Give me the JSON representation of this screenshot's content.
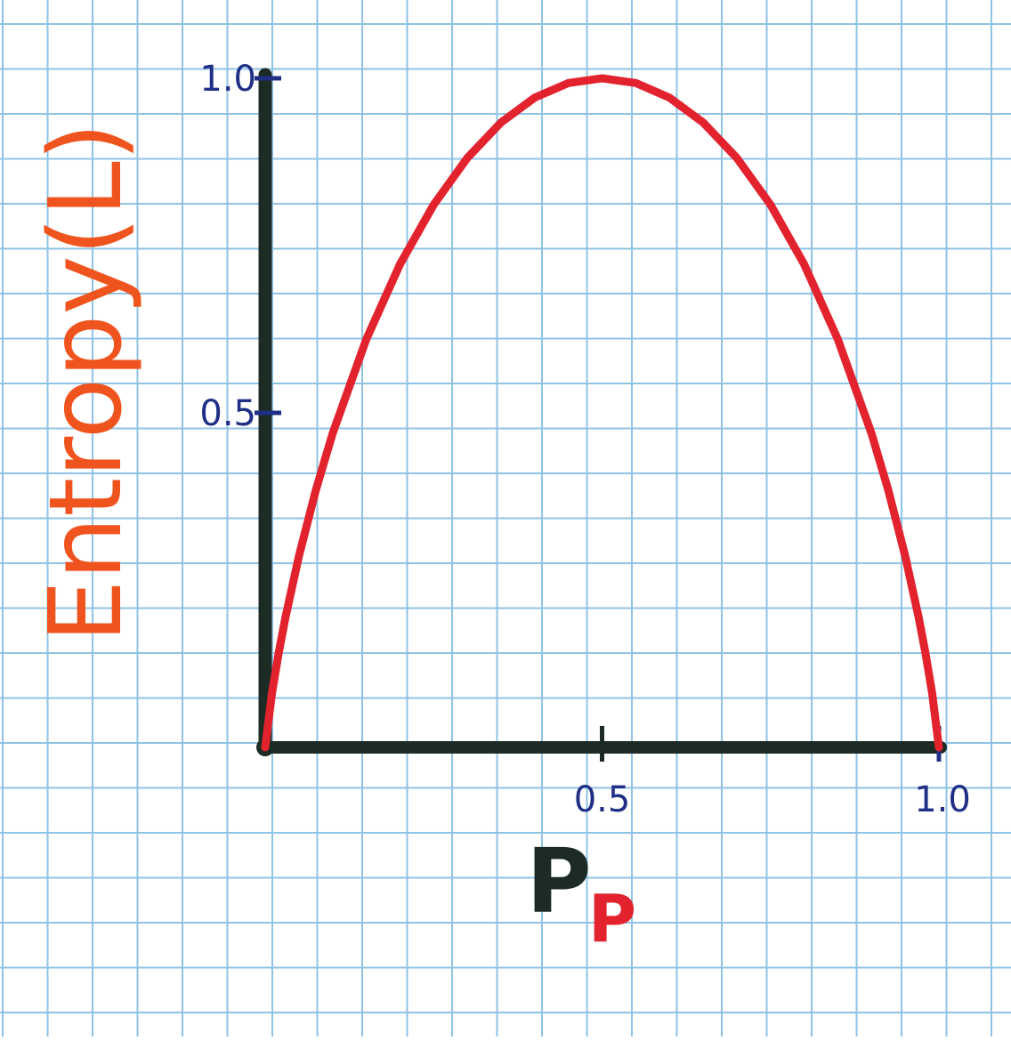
{
  "chart_data": {
    "type": "line",
    "xlabel": "P",
    "xlabel_subscript": "P",
    "ylabel": "Entropy(L)",
    "xlim": [
      0,
      1.0
    ],
    "ylim": [
      0,
      1.0
    ],
    "x_tick_labels": [
      {
        "value": 0.5,
        "label": "0.5"
      },
      {
        "value": 1.0,
        "label": "1.0"
      }
    ],
    "y_tick_labels": [
      {
        "value": 0.5,
        "label": "0.5"
      },
      {
        "value": 1.0,
        "label": "1.0"
      }
    ],
    "grid": true,
    "colors": {
      "grid": "#8fc3e6",
      "axes": "#1c2b24",
      "curve": "#e2232e",
      "ylabel": "#f0541e",
      "tick_labels": "#1f2f86",
      "xlabel_main": "#1c2b24",
      "xlabel_sub": "#e2232e"
    },
    "series": [
      {
        "values": [
          {
            "x": 0.0,
            "y": 0.0
          },
          {
            "x": 0.01,
            "y": 0.081
          },
          {
            "x": 0.02,
            "y": 0.141
          },
          {
            "x": 0.03,
            "y": 0.194
          },
          {
            "x": 0.05,
            "y": 0.286
          },
          {
            "x": 0.075,
            "y": 0.384
          },
          {
            "x": 0.1,
            "y": 0.469
          },
          {
            "x": 0.15,
            "y": 0.61
          },
          {
            "x": 0.2,
            "y": 0.722
          },
          {
            "x": 0.25,
            "y": 0.811
          },
          {
            "x": 0.3,
            "y": 0.881
          },
          {
            "x": 0.35,
            "y": 0.934
          },
          {
            "x": 0.4,
            "y": 0.971
          },
          {
            "x": 0.45,
            "y": 0.993
          },
          {
            "x": 0.5,
            "y": 1.0
          },
          {
            "x": 0.55,
            "y": 0.993
          },
          {
            "x": 0.6,
            "y": 0.971
          },
          {
            "x": 0.65,
            "y": 0.934
          },
          {
            "x": 0.7,
            "y": 0.881
          },
          {
            "x": 0.75,
            "y": 0.811
          },
          {
            "x": 0.8,
            "y": 0.722
          },
          {
            "x": 0.85,
            "y": 0.61
          },
          {
            "x": 0.9,
            "y": 0.469
          },
          {
            "x": 0.925,
            "y": 0.384
          },
          {
            "x": 0.95,
            "y": 0.286
          },
          {
            "x": 0.97,
            "y": 0.194
          },
          {
            "x": 0.98,
            "y": 0.141
          },
          {
            "x": 0.99,
            "y": 0.081
          },
          {
            "x": 1.0,
            "y": 0.0
          }
        ]
      }
    ]
  }
}
